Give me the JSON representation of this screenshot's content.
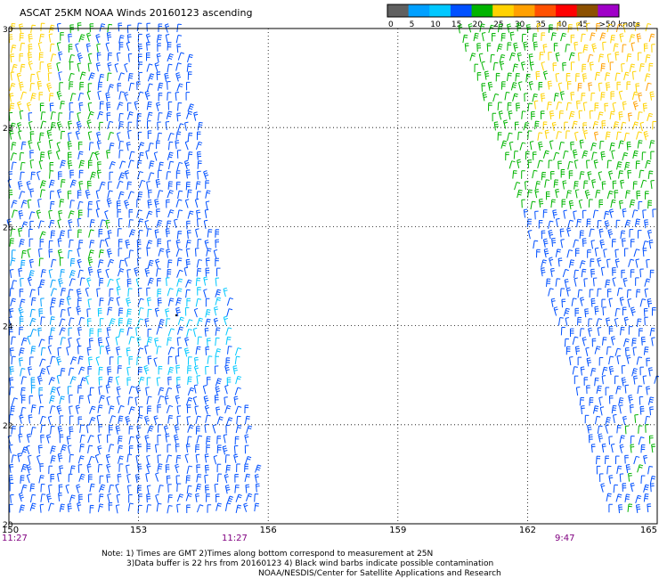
{
  "title": "ASCAT 25KM NOAA Winds 20160123 ascending",
  "legend": {
    "labels": [
      "0",
      "5",
      "10",
      "15",
      "20",
      "25",
      "30",
      "35",
      "40",
      "45",
      ">50 knots"
    ],
    "colors": [
      "#606060",
      "#00a0ff",
      "#00c8ff",
      "#0050ff",
      "#00b400",
      "#ffd200",
      "#ffa000",
      "#ff5000",
      "#ff0000",
      "#8c5000",
      "#a000c8"
    ]
  },
  "map": {
    "lon_ticks": [
      "150",
      "153",
      "156",
      "159",
      "162",
      "165"
    ],
    "lat_ticks": [
      "30",
      "28",
      "26",
      "24",
      "22",
      "20"
    ],
    "lon_range": [
      150,
      165
    ],
    "lat_range": [
      20,
      30
    ],
    "gridlines": true,
    "time_labels": [
      "11:27",
      "11:27",
      "9:47"
    ]
  },
  "notes": [
    "Note: 1) Times are GMT 2)Times along bottom correspond to measurement at 25N",
    "3)Data buffer is 22 hrs from 20160123 4) Black wind barbs indicate possible contamination",
    "NOAA/NESDIS/Center for Satellite Applications and Research"
  ]
}
